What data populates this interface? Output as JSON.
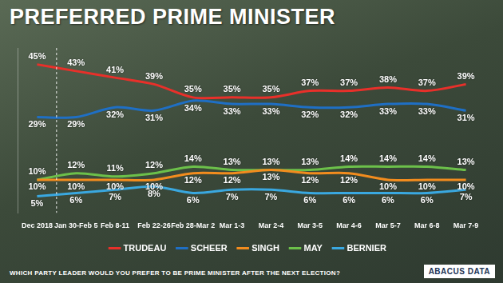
{
  "chart_data": {
    "type": "line",
    "title": "PREFERRED PRIME MINISTER",
    "subtitle": "WHICH PARTY LEADER WOULD YOU PREFER TO BE PRIME MINISTER AFTER THE NEXT ELECTION?",
    "annotations": [
      "ABACUS DATA"
    ],
    "categories": [
      "Dec 2018",
      "Jan 30-Feb 5",
      "Feb 8-11",
      "Feb 22-26",
      "Feb 28-Mar 2",
      "Mar 1-3",
      "Mar 2-4",
      "Mar 3-5",
      "Mar 4-6",
      "Mar 5-7",
      "Mar 6-8",
      "Mar 7-9"
    ],
    "series": [
      {
        "name": "TRUDEAU",
        "color": "#e8302a",
        "values": [
          45,
          43,
          41,
          39,
          35,
          35,
          35,
          37,
          37,
          38,
          37,
          39
        ],
        "value_labels": [
          "45%",
          "43%",
          "41%",
          "39%",
          "35%",
          "35%",
          "35%",
          "37%",
          "37%",
          "38%",
          "37%",
          "39%"
        ]
      },
      {
        "name": "SCHEER",
        "color": "#1f6fc4",
        "values": [
          29,
          29,
          32,
          31,
          34,
          33,
          33,
          32,
          32,
          33,
          33,
          31
        ],
        "value_labels": [
          "29%",
          "29%",
          "32%",
          "31%",
          "34%",
          "33%",
          "33%",
          "32%",
          "32%",
          "33%",
          "33%",
          "31%"
        ]
      },
      {
        "name": "SINGH",
        "color": "#f28c1e",
        "values": [
          10,
          10,
          10,
          10,
          12,
          12,
          13,
          12,
          12,
          10,
          10,
          10
        ],
        "value_labels": [
          "10%",
          "10%",
          "10%",
          "10%",
          "12%",
          "12%",
          "13%",
          "12%",
          "12%",
          "10%",
          "10%",
          "10%"
        ]
      },
      {
        "name": "MAY",
        "color": "#6cc04a",
        "values": [
          10,
          12,
          11,
          12,
          14,
          13,
          13,
          13,
          14,
          14,
          14,
          13
        ],
        "value_labels": [
          "10%",
          "12%",
          "11%",
          "12%",
          "14%",
          "13%",
          "13%",
          "13%",
          "14%",
          "14%",
          "14%",
          "13%"
        ]
      },
      {
        "name": "BERNIER",
        "color": "#3aa8e0",
        "values": [
          5,
          6,
          7,
          8,
          6,
          7,
          7,
          6,
          6,
          6,
          6,
          7
        ],
        "value_labels": [
          "5%",
          "6%",
          "7%",
          "8%",
          "6%",
          "7%",
          "7%",
          "6%",
          "6%",
          "6%",
          "6%",
          "7%"
        ]
      }
    ],
    "ylim": [
      0,
      50
    ],
    "grid": false,
    "legend": "bottom",
    "data_labels": true,
    "tick_labels": "x"
  }
}
